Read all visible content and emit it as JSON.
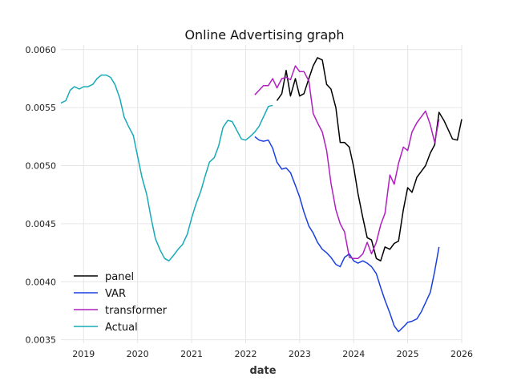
{
  "chart_data": {
    "type": "line",
    "title": "Online Advertising graph",
    "xlabel": "date",
    "ylabel": "",
    "x_tick_labels": [
      "2019",
      "2020",
      "2021",
      "2022",
      "2023",
      "2024",
      "2025",
      "2026"
    ],
    "y_tick_labels": [
      "0.0035",
      "0.0040",
      "0.0045",
      "0.0050",
      "0.0055",
      "0.0060"
    ],
    "xlim": [
      2018.58,
      2026.0
    ],
    "ylim": [
      0.00347,
      0.00604
    ],
    "grid": true,
    "legend_position": "lower-left",
    "series": [
      {
        "name": "panel",
        "color": "#000000",
        "points": [
          [
            2022.58,
            0.00556
          ],
          [
            2022.67,
            0.00562
          ],
          [
            2022.75,
            0.00582
          ],
          [
            2022.83,
            0.0056
          ],
          [
            2022.92,
            0.00575
          ],
          [
            2023.0,
            0.0056
          ],
          [
            2023.08,
            0.00562
          ],
          [
            2023.17,
            0.00575
          ],
          [
            2023.25,
            0.00586
          ],
          [
            2023.33,
            0.00593
          ],
          [
            2023.42,
            0.00591
          ],
          [
            2023.5,
            0.0057
          ],
          [
            2023.58,
            0.00566
          ],
          [
            2023.67,
            0.0055
          ],
          [
            2023.75,
            0.0052
          ],
          [
            2023.83,
            0.0052
          ],
          [
            2023.92,
            0.00516
          ],
          [
            2024.0,
            0.00499
          ],
          [
            2024.08,
            0.00476
          ],
          [
            2024.17,
            0.00455
          ],
          [
            2024.25,
            0.00438
          ],
          [
            2024.33,
            0.00436
          ],
          [
            2024.42,
            0.0042
          ],
          [
            2024.5,
            0.00418
          ],
          [
            2024.58,
            0.0043
          ],
          [
            2024.67,
            0.00428
          ],
          [
            2024.75,
            0.00433
          ],
          [
            2024.83,
            0.00435
          ],
          [
            2024.92,
            0.00462
          ],
          [
            2025.0,
            0.00481
          ],
          [
            2025.08,
            0.00477
          ],
          [
            2025.17,
            0.0049
          ],
          [
            2025.25,
            0.00495
          ],
          [
            2025.33,
            0.005
          ],
          [
            2025.42,
            0.00511
          ],
          [
            2025.5,
            0.00518
          ],
          [
            2025.58,
            0.00546
          ],
          [
            2025.67,
            0.00539
          ],
          [
            2025.75,
            0.00531
          ],
          [
            2025.83,
            0.00523
          ],
          [
            2025.92,
            0.00522
          ],
          [
            2026.0,
            0.0054
          ]
        ]
      },
      {
        "name": "VAR",
        "color": "#1a3fe0",
        "points": [
          [
            2022.17,
            0.00525
          ],
          [
            2022.25,
            0.00522
          ],
          [
            2022.33,
            0.00521
          ],
          [
            2022.42,
            0.00522
          ],
          [
            2022.5,
            0.00515
          ],
          [
            2022.58,
            0.00503
          ],
          [
            2022.67,
            0.00497
          ],
          [
            2022.75,
            0.00498
          ],
          [
            2022.83,
            0.00494
          ],
          [
            2022.92,
            0.00483
          ],
          [
            2023.0,
            0.00473
          ],
          [
            2023.08,
            0.0046
          ],
          [
            2023.17,
            0.00448
          ],
          [
            2023.25,
            0.00442
          ],
          [
            2023.33,
            0.00434
          ],
          [
            2023.42,
            0.00428
          ],
          [
            2023.5,
            0.00425
          ],
          [
            2023.58,
            0.00421
          ],
          [
            2023.67,
            0.00415
          ],
          [
            2023.75,
            0.00413
          ],
          [
            2023.83,
            0.00421
          ],
          [
            2023.92,
            0.00424
          ],
          [
            2024.0,
            0.00418
          ],
          [
            2024.08,
            0.00416
          ],
          [
            2024.17,
            0.00418
          ],
          [
            2024.25,
            0.00416
          ],
          [
            2024.33,
            0.00413
          ],
          [
            2024.42,
            0.00407
          ],
          [
            2024.5,
            0.00395
          ],
          [
            2024.58,
            0.00384
          ],
          [
            2024.67,
            0.00373
          ],
          [
            2024.75,
            0.00362
          ],
          [
            2024.83,
            0.00357
          ],
          [
            2024.92,
            0.00361
          ],
          [
            2025.0,
            0.00365
          ],
          [
            2025.08,
            0.00366
          ],
          [
            2025.17,
            0.00368
          ],
          [
            2025.25,
            0.00374
          ],
          [
            2025.33,
            0.00382
          ],
          [
            2025.42,
            0.00391
          ],
          [
            2025.5,
            0.00409
          ],
          [
            2025.58,
            0.0043
          ]
        ]
      },
      {
        "name": "transformer",
        "color": "#b01fc0",
        "points": [
          [
            2022.17,
            0.00561
          ],
          [
            2022.25,
            0.00565
          ],
          [
            2022.33,
            0.00569
          ],
          [
            2022.42,
            0.00569
          ],
          [
            2022.5,
            0.00575
          ],
          [
            2022.58,
            0.00567
          ],
          [
            2022.67,
            0.00575
          ],
          [
            2022.75,
            0.00576
          ],
          [
            2022.83,
            0.00574
          ],
          [
            2022.92,
            0.00586
          ],
          [
            2023.0,
            0.00581
          ],
          [
            2023.08,
            0.00581
          ],
          [
            2023.17,
            0.00573
          ],
          [
            2023.25,
            0.00545
          ],
          [
            2023.33,
            0.00537
          ],
          [
            2023.42,
            0.00529
          ],
          [
            2023.5,
            0.00513
          ],
          [
            2023.58,
            0.00485
          ],
          [
            2023.67,
            0.00462
          ],
          [
            2023.75,
            0.0045
          ],
          [
            2023.83,
            0.00443
          ],
          [
            2023.92,
            0.00421
          ],
          [
            2024.0,
            0.0042
          ],
          [
            2024.08,
            0.0042
          ],
          [
            2024.17,
            0.00424
          ],
          [
            2024.25,
            0.00434
          ],
          [
            2024.33,
            0.00424
          ],
          [
            2024.42,
            0.00434
          ],
          [
            2024.5,
            0.00449
          ],
          [
            2024.58,
            0.00459
          ],
          [
            2024.67,
            0.00492
          ],
          [
            2024.75,
            0.00484
          ],
          [
            2024.83,
            0.00502
          ],
          [
            2024.92,
            0.00516
          ],
          [
            2025.0,
            0.00513
          ],
          [
            2025.08,
            0.00529
          ],
          [
            2025.17,
            0.00537
          ],
          [
            2025.25,
            0.00542
          ],
          [
            2025.33,
            0.00547
          ],
          [
            2025.42,
            0.00535
          ],
          [
            2025.5,
            0.0052
          ],
          [
            2025.58,
            0.0054
          ]
        ]
      },
      {
        "name": "Actual",
        "color": "#17aab8",
        "points": [
          [
            2018.58,
            0.00554
          ],
          [
            2018.67,
            0.00556
          ],
          [
            2018.75,
            0.00565
          ],
          [
            2018.83,
            0.00568
          ],
          [
            2018.92,
            0.00566
          ],
          [
            2019.0,
            0.00568
          ],
          [
            2019.08,
            0.00568
          ],
          [
            2019.17,
            0.0057
          ],
          [
            2019.25,
            0.00575
          ],
          [
            2019.33,
            0.00578
          ],
          [
            2019.42,
            0.00578
          ],
          [
            2019.5,
            0.00576
          ],
          [
            2019.58,
            0.0057
          ],
          [
            2019.67,
            0.00558
          ],
          [
            2019.75,
            0.00542
          ],
          [
            2019.83,
            0.00534
          ],
          [
            2019.92,
            0.00526
          ],
          [
            2020.0,
            0.00508
          ],
          [
            2020.08,
            0.0049
          ],
          [
            2020.17,
            0.00475
          ],
          [
            2020.25,
            0.00455
          ],
          [
            2020.33,
            0.00437
          ],
          [
            2020.42,
            0.00427
          ],
          [
            2020.5,
            0.0042
          ],
          [
            2020.58,
            0.00418
          ],
          [
            2020.67,
            0.00423
          ],
          [
            2020.75,
            0.00428
          ],
          [
            2020.83,
            0.00432
          ],
          [
            2020.92,
            0.00441
          ],
          [
            2021.0,
            0.00455
          ],
          [
            2021.08,
            0.00467
          ],
          [
            2021.17,
            0.00478
          ],
          [
            2021.25,
            0.00491
          ],
          [
            2021.33,
            0.00503
          ],
          [
            2021.42,
            0.00507
          ],
          [
            2021.5,
            0.00517
          ],
          [
            2021.58,
            0.00533
          ],
          [
            2021.67,
            0.00539
          ],
          [
            2021.75,
            0.00538
          ],
          [
            2021.83,
            0.00531
          ],
          [
            2021.92,
            0.00523
          ],
          [
            2022.0,
            0.00522
          ],
          [
            2022.08,
            0.00525
          ],
          [
            2022.17,
            0.00529
          ],
          [
            2022.25,
            0.00534
          ],
          [
            2022.33,
            0.00542
          ],
          [
            2022.42,
            0.00551
          ],
          [
            2022.5,
            0.00552
          ]
        ]
      }
    ]
  }
}
